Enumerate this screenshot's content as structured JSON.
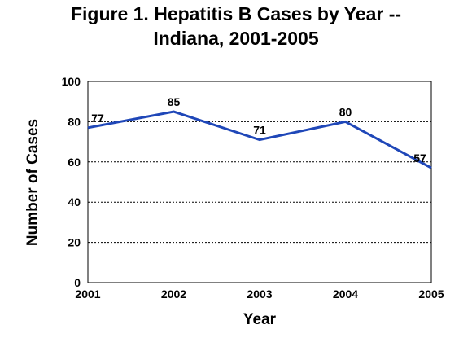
{
  "chart_data": {
    "type": "line",
    "title_line1": "Figure 1. Hepatitis B Cases by Year --",
    "title_line2": "Indiana, 2001-2005",
    "xlabel": "Year",
    "ylabel": "Number of Cases",
    "categories": [
      "2001",
      "2002",
      "2003",
      "2004",
      "2005"
    ],
    "values": [
      77,
      85,
      71,
      80,
      57
    ],
    "ylim": [
      0,
      100
    ],
    "yticks": [
      0,
      20,
      40,
      60,
      80,
      100
    ],
    "grid": "horizontal dotted",
    "line_color": "#1f47b8"
  }
}
